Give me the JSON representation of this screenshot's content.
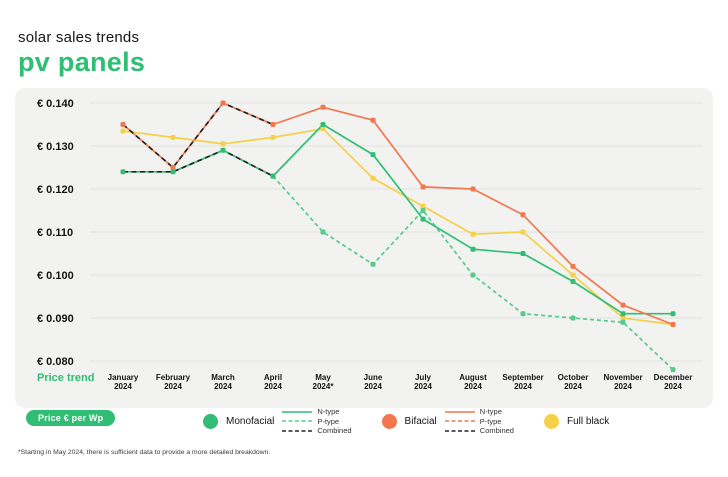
{
  "header": {
    "subtitle": "solar sales trends",
    "title": "pv panels"
  },
  "chart_card": {
    "price_trend_label": "Price trend",
    "badge_label": "Price € per Wp"
  },
  "legend": {
    "groups": [
      {
        "id": "monofacial",
        "name": "Monofacial",
        "color": "#2FBE73",
        "entries": [
          {
            "id": "monofacial-n-type",
            "label": "N-type",
            "style": "solid",
            "color": "#2FBE73"
          },
          {
            "id": "monofacial-p-type",
            "label": "P-type",
            "style": "dashed",
            "color": "#55CA8E"
          },
          {
            "id": "monofacial-combined",
            "label": "Combined",
            "style": "dashed",
            "color": "#232323"
          }
        ]
      },
      {
        "id": "bifacial",
        "name": "Bifacial",
        "color": "#F2764E",
        "entries": [
          {
            "id": "bifacial-n-type",
            "label": "N-type",
            "style": "solid",
            "color": "#F2764E"
          },
          {
            "id": "bifacial-p-type",
            "label": "P-type",
            "style": "dashed",
            "color": "#F2764E"
          },
          {
            "id": "bifacial-combined",
            "label": "Combined",
            "style": "dashed",
            "color": "#232323"
          }
        ]
      },
      {
        "id": "full-black",
        "name": "Full black",
        "color": "#F5D049",
        "entries": []
      }
    ]
  },
  "footnote": "*Starting in May 2024, there is sufficient data to provide a more detailed breakdown.",
  "chart_data": {
    "type": "line",
    "unit": "€ per Wp",
    "title": "solar sales trends — pv panels",
    "x_labels": [
      [
        "January",
        "2024"
      ],
      [
        "February",
        "2024"
      ],
      [
        "March",
        "2024"
      ],
      [
        "April",
        "2024"
      ],
      [
        "May",
        "2024*"
      ],
      [
        "June",
        "2024"
      ],
      [
        "July",
        "2024"
      ],
      [
        "August",
        "2024"
      ],
      [
        "September",
        "2024"
      ],
      [
        "October",
        "2024"
      ],
      [
        "November",
        "2024"
      ],
      [
        "December",
        "2024"
      ]
    ],
    "y_ticks": [
      0.14,
      0.13,
      0.12,
      0.11,
      0.1,
      0.09,
      0.08
    ],
    "y_tick_labels": [
      "€ 0.140",
      "€ 0.130",
      "€ 0.120",
      "€ 0.110",
      "€ 0.100",
      "€ 0.090",
      "€ 0.080"
    ],
    "ylim": [
      0.076,
      0.143
    ],
    "grid": true,
    "legend_position": "bottom",
    "series": [
      {
        "id": "full-black",
        "name": "Full black",
        "color": "#F5D049",
        "style": "solid",
        "marker": true,
        "x_start": 0,
        "values": [
          0.1335,
          0.132,
          0.1305,
          0.132,
          0.134,
          0.1225,
          0.116,
          0.1095,
          0.11,
          0.1,
          0.09,
          0.0885
        ]
      },
      {
        "id": "monofacial-p-type",
        "name": "Monofacial P-type",
        "color": "#55CA8E",
        "style": "dashed",
        "marker": true,
        "x_start": 3,
        "values": [
          0.123,
          0.11,
          0.1025,
          0.115,
          0.1,
          0.091,
          0.09,
          0.089,
          0.078
        ]
      },
      {
        "id": "monofacial-n-type",
        "name": "Monofacial N-type",
        "color": "#2FBE73",
        "style": "solid",
        "marker": true,
        "x_start": 0,
        "values": [
          0.124,
          0.124,
          0.129,
          0.123,
          0.135,
          0.128,
          0.113,
          0.106,
          0.105,
          0.0985,
          0.091,
          0.091
        ]
      },
      {
        "id": "bifacial-n-type",
        "name": "Bifacial N-type",
        "color": "#F2764E",
        "style": "solid",
        "marker": true,
        "x_start": 0,
        "values": [
          0.135,
          0.125,
          0.14,
          0.135,
          0.139,
          0.136,
          0.1205,
          0.12,
          0.114,
          0.102,
          0.093,
          0.0885
        ]
      },
      {
        "id": "bifacial-p-type",
        "name": "Bifacial P-type",
        "color": "#F2764E",
        "style": "dashed",
        "marker": false,
        "x_start": 0,
        "values": []
      },
      {
        "id": "monofacial-combined",
        "name": "Monofacial Combined",
        "color": "#232323",
        "style": "dashed",
        "marker": false,
        "x_start": 0,
        "values": [
          0.124,
          0.124,
          0.129,
          0.123
        ]
      },
      {
        "id": "bifacial-combined",
        "name": "Bifacial Combined",
        "color": "#232323",
        "style": "dashed",
        "marker": false,
        "x_start": 0,
        "values": [
          0.135,
          0.125,
          0.14,
          0.135
        ]
      }
    ]
  }
}
